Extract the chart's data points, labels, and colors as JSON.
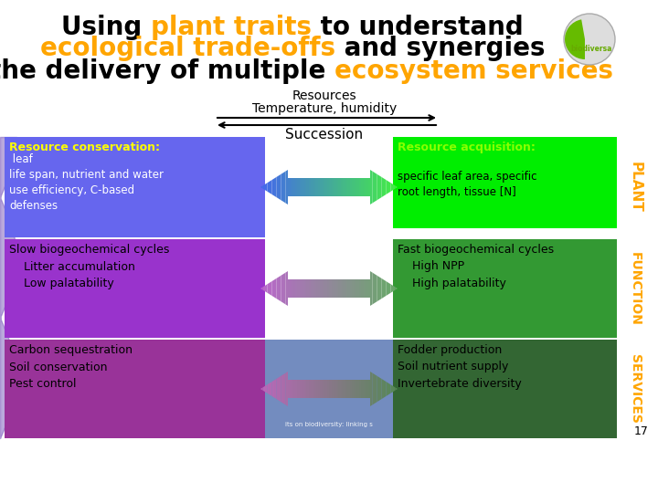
{
  "title_line1_parts": [
    {
      "text": "Using ",
      "color": "#000000"
    },
    {
      "text": "plant traits",
      "color": "#FFA500"
    },
    {
      "text": " to understand",
      "color": "#000000"
    }
  ],
  "title_line2_parts": [
    {
      "text": "ecological trade-offs",
      "color": "#FFA500"
    },
    {
      "text": " and synergies",
      "color": "#000000"
    }
  ],
  "title_line3_parts": [
    {
      "text": "in the delivery of multiple ",
      "color": "#000000"
    },
    {
      "text": "ecosystem services",
      "color": "#FFA500"
    }
  ],
  "resources_label": "Resources",
  "temp_humidity_label": "Temperature, humidity",
  "succession_label": "Succession",
  "left_box1_title": "Resource conservation:",
  "left_box1_body": " leaf\nlife span, nutrient and water\nuse efficiency, C-based\ndefenses",
  "left_box1_bg": "#6666EE",
  "left_box1_title_color": "#FFFF00",
  "left_box1_text_color": "#FFFFFF",
  "right_box1_title": "Resource acquisition:",
  "right_box1_body": "\nspecific leaf area, specific\nroot length, tissue [N]",
  "right_box1_bg": "#00EE00",
  "right_box1_title_color": "#88FF00",
  "right_box1_text_color": "#000000",
  "left_box2_text": "Slow biogeochemical cycles\n    Litter accumulation\n    Low palatability",
  "left_box2_bg": "#9933CC",
  "left_box2_text_color": "#000000",
  "right_box2_text": "Fast biogeochemical cycles\n    High NPP\n    High palatability",
  "right_box2_bg": "#339933",
  "right_box2_text_color": "#000000",
  "left_box3_text": "Carbon sequestration\nSoil conservation\nPest control",
  "left_box3_bg": "#993399",
  "left_box3_text_color": "#000000",
  "right_box3_text": "Fodder production\nSoil nutrient supply\nInvertebrate diversity",
  "right_box3_bg": "#336633",
  "right_box3_text_color": "#000000",
  "side_label1": "PLANT",
  "side_label2": "FUNCTION",
  "side_label3": "SERVICES",
  "side_label_color": "#FFA500",
  "page_number": "17",
  "background_color": "#FFFFFF",
  "arrow1_color_left": "#4466EE",
  "arrow1_color_right": "#44EE44",
  "arrow2_color_left": "#BB66CC",
  "arrow2_color_right": "#66AA66",
  "arrow3_color_left": "#BB66BB",
  "arrow3_color_right": "#558855"
}
